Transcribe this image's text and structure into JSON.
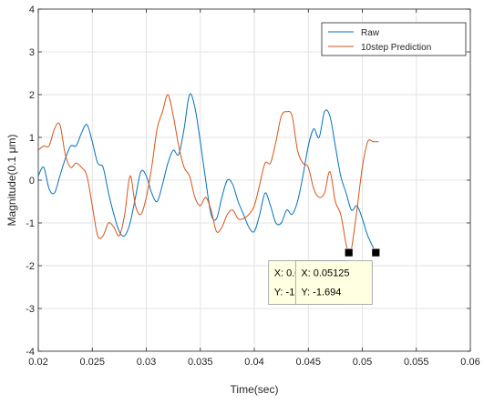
{
  "chart_data": {
    "type": "line",
    "title": "",
    "xlabel": "Time(sec)",
    "ylabel": "Magnitude(0.1 μm)",
    "xlim": [
      0.02,
      0.06
    ],
    "ylim": [
      -4,
      4
    ],
    "x_ticks": [
      0.02,
      0.025,
      0.03,
      0.035,
      0.04,
      0.045,
      0.05,
      0.055,
      0.06
    ],
    "x_tick_labels": [
      "0.02",
      "0.025",
      "0.03",
      "0.035",
      "0.04",
      "0.045",
      "0.05",
      "0.055",
      "0.06"
    ],
    "y_ticks": [
      4,
      3,
      2,
      1,
      0,
      -1,
      -2,
      -3,
      -4
    ],
    "y_tick_labels": [
      "4",
      "3",
      "2",
      "1",
      "0",
      "-1",
      "-2",
      "-3",
      "-4"
    ],
    "grid": true,
    "legend_position": "top-right",
    "series": [
      {
        "name": "Raw",
        "color": "#0072BD",
        "x": [
          0.02,
          0.0205,
          0.021,
          0.0215,
          0.022,
          0.0225,
          0.023,
          0.0235,
          0.024,
          0.0245,
          0.025,
          0.0255,
          0.026,
          0.0265,
          0.027,
          0.0275,
          0.028,
          0.0285,
          0.029,
          0.0295,
          0.03,
          0.0305,
          0.031,
          0.0315,
          0.032,
          0.0325,
          0.033,
          0.0335,
          0.034,
          0.0345,
          0.035,
          0.0355,
          0.036,
          0.0365,
          0.037,
          0.0375,
          0.038,
          0.0385,
          0.039,
          0.0395,
          0.04,
          0.0405,
          0.041,
          0.0415,
          0.042,
          0.0425,
          0.043,
          0.0435,
          0.044,
          0.0445,
          0.045,
          0.0455,
          0.046,
          0.0465,
          0.047,
          0.0475,
          0.048,
          0.0485,
          0.049,
          0.0495,
          0.05,
          0.0505,
          0.05125
        ],
        "values": [
          0.1,
          0.3,
          -0.2,
          -0.3,
          0.1,
          0.5,
          0.8,
          0.8,
          1.1,
          1.3,
          0.9,
          0.4,
          0.3,
          -0.3,
          -0.8,
          -1.2,
          -1.3,
          -1.0,
          -0.4,
          0.2,
          0.1,
          -0.3,
          -0.5,
          -0.1,
          0.4,
          0.7,
          0.6,
          1.2,
          2.0,
          1.7,
          0.9,
          0.0,
          -0.8,
          -0.9,
          -0.4,
          0.0,
          -0.1,
          -0.5,
          -0.8,
          -1.1,
          -1.2,
          -0.8,
          -0.3,
          -0.6,
          -1.0,
          -1.0,
          -0.7,
          -0.8,
          -0.5,
          0.1,
          0.8,
          1.2,
          1.0,
          1.6,
          1.5,
          0.8,
          0.1,
          -0.3,
          -0.7,
          -0.6,
          -0.9,
          -1.3,
          -1.694
        ]
      },
      {
        "name": "10step Prediction",
        "color": "#D95319",
        "x": [
          0.02,
          0.0205,
          0.021,
          0.0215,
          0.022,
          0.0225,
          0.023,
          0.0235,
          0.024,
          0.0245,
          0.025,
          0.0255,
          0.026,
          0.0265,
          0.027,
          0.0275,
          0.028,
          0.0285,
          0.029,
          0.0295,
          0.03,
          0.0305,
          0.031,
          0.0315,
          0.032,
          0.0325,
          0.033,
          0.0335,
          0.034,
          0.0345,
          0.035,
          0.0355,
          0.036,
          0.0365,
          0.037,
          0.0375,
          0.038,
          0.0385,
          0.039,
          0.0395,
          0.04,
          0.0405,
          0.041,
          0.0415,
          0.042,
          0.0425,
          0.043,
          0.0435,
          0.044,
          0.0445,
          0.045,
          0.0455,
          0.046,
          0.0465,
          0.047,
          0.0475,
          0.048,
          0.0485,
          0.04875,
          0.049,
          0.0495,
          0.05,
          0.0505,
          0.051,
          0.0515
        ],
        "values": [
          0.7,
          0.8,
          0.8,
          1.2,
          1.3,
          0.6,
          0.3,
          0.4,
          0.3,
          0.1,
          -0.6,
          -1.3,
          -1.3,
          -1.0,
          -1.1,
          -1.3,
          -0.8,
          0.1,
          -0.6,
          -0.8,
          -0.4,
          0.3,
          1.2,
          1.6,
          2.0,
          1.5,
          0.8,
          0.3,
          0.1,
          -0.4,
          -0.6,
          -0.4,
          -0.7,
          -1.2,
          -1.1,
          -0.8,
          -0.7,
          -0.9,
          -0.9,
          -0.8,
          -0.6,
          -0.1,
          0.4,
          0.4,
          0.9,
          1.5,
          1.6,
          1.5,
          0.7,
          0.4,
          0.3,
          -0.2,
          -0.4,
          -0.3,
          0.2,
          -0.5,
          -0.8,
          -1.5,
          -1.694,
          -1.6,
          -0.7,
          0.3,
          0.9,
          0.9,
          0.9
        ]
      }
    ],
    "datatips": [
      {
        "x": 0.04875,
        "y": -1.694,
        "x_label": "X: 0.04875",
        "y_label": "Y: -1.694"
      },
      {
        "x": 0.05125,
        "y": -1.694,
        "x_label": "X: 0.05125",
        "y_label": "Y: -1.694"
      }
    ]
  }
}
